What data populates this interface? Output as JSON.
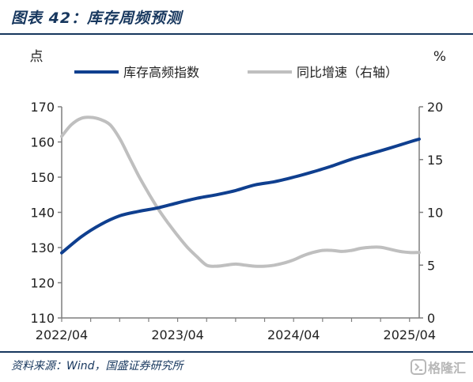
{
  "figure": {
    "title": "图表 42：库存周频预测",
    "source": "资料来源：Wind，国盛证券研究所",
    "watermark": "格隆汇"
  },
  "colors": {
    "header_blue": "#17375e",
    "series_inventory": "#0f3f8f",
    "series_yoy": "#bfbfbf",
    "axis": "#7f7f7f"
  },
  "chart_data": {
    "type": "line",
    "left_unit": "点",
    "right_unit": "%",
    "x_labels": [
      "2022/04",
      "2023/04",
      "2024/04",
      "2025/04"
    ],
    "x_range": [
      "2022-04",
      "2025-05"
    ],
    "y_left": {
      "lim": [
        110,
        170
      ],
      "ticks": [
        110,
        120,
        130,
        140,
        150,
        160,
        170
      ]
    },
    "y_right": {
      "lim": [
        0,
        20
      ],
      "ticks": [
        0,
        5,
        10,
        15,
        20
      ]
    },
    "grid": false,
    "legend_position": "top",
    "series": [
      {
        "name": "库存高频指数",
        "axis": "left",
        "color": "#0f3f8f",
        "x": [
          "2022-04",
          "2022-06",
          "2022-08",
          "2022-10",
          "2022-12",
          "2023-02",
          "2023-04",
          "2023-06",
          "2023-08",
          "2023-10",
          "2023-12",
          "2024-02",
          "2024-04",
          "2024-06",
          "2024-08",
          "2024-10",
          "2024-12",
          "2025-02",
          "2025-04",
          "2025-05"
        ],
        "values": [
          128.5,
          133.0,
          136.5,
          139.0,
          140.3,
          141.3,
          142.7,
          144.0,
          145.0,
          146.2,
          147.8,
          148.7,
          150.0,
          151.5,
          153.2,
          155.1,
          156.7,
          158.3,
          160.0,
          160.8
        ]
      },
      {
        "name": "同比增速（右轴）",
        "axis": "right",
        "color": "#bfbfbf",
        "x": [
          "2022-04",
          "2022-05",
          "2022-06",
          "2022-07",
          "2022-08",
          "2022-09",
          "2022-10",
          "2022-11",
          "2022-12",
          "2023-01",
          "2023-02",
          "2023-03",
          "2023-04",
          "2023-05",
          "2023-06",
          "2023-07",
          "2023-08",
          "2023-09",
          "2023-10",
          "2023-11",
          "2023-12",
          "2024-01",
          "2024-02",
          "2024-03",
          "2024-04",
          "2024-05",
          "2024-06",
          "2024-07",
          "2024-08",
          "2024-09",
          "2024-10",
          "2024-11",
          "2024-12",
          "2025-01",
          "2025-02",
          "2025-03",
          "2025-04",
          "2025-05"
        ],
        "values": [
          17.2,
          18.3,
          18.9,
          19.0,
          18.8,
          18.3,
          17.0,
          15.2,
          13.4,
          11.8,
          10.3,
          9.0,
          7.8,
          6.7,
          5.8,
          5.0,
          4.9,
          5.0,
          5.1,
          5.0,
          4.9,
          4.9,
          5.0,
          5.2,
          5.5,
          5.9,
          6.2,
          6.4,
          6.4,
          6.3,
          6.4,
          6.6,
          6.7,
          6.7,
          6.5,
          6.3,
          6.2,
          6.2
        ]
      }
    ]
  }
}
